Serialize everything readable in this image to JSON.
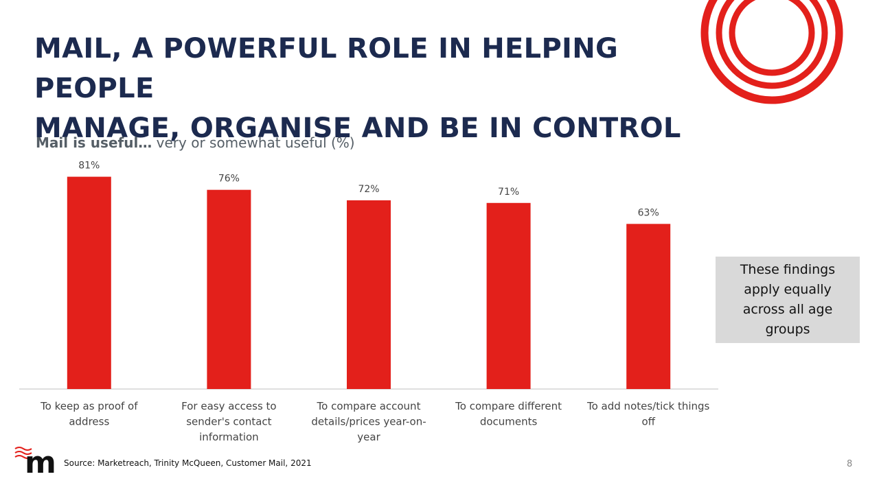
{
  "slide": {
    "title_line1": "MAIL, A POWERFUL ROLE IN HELPING PEOPLE",
    "title_line2": "MANAGE, ORGANISE AND BE IN CONTROL",
    "subtitle_bold": "Mail is useful…",
    "subtitle_rest": " very or somewhat useful (%)",
    "callout": "These findings apply equally across all age groups",
    "source": "Source: Marketreach, Trinity McQueen, Customer Mail, 2021",
    "page_number": "8",
    "brand_logo_text": "m",
    "accent_color": "#e3201b",
    "title_color": "#1c2a4f",
    "icons": [
      "royal-mail-rings-logo",
      "marketreach-m-logo"
    ]
  },
  "chart_data": {
    "type": "bar",
    "categories": [
      [
        "To keep as proof of",
        "address"
      ],
      [
        "For easy access to",
        "sender's contact",
        "information"
      ],
      [
        "To compare account",
        "details/prices year-on-",
        "year"
      ],
      [
        "To compare different",
        "documents"
      ],
      [
        "To add notes/tick things",
        "off"
      ]
    ],
    "values": [
      81,
      76,
      72,
      71,
      63
    ],
    "data_labels": [
      "81%",
      "76%",
      "72%",
      "71%",
      "63%"
    ],
    "bar_color": "#e3201b",
    "ylim": [
      0,
      100
    ],
    "grid": false,
    "legend": "none"
  }
}
